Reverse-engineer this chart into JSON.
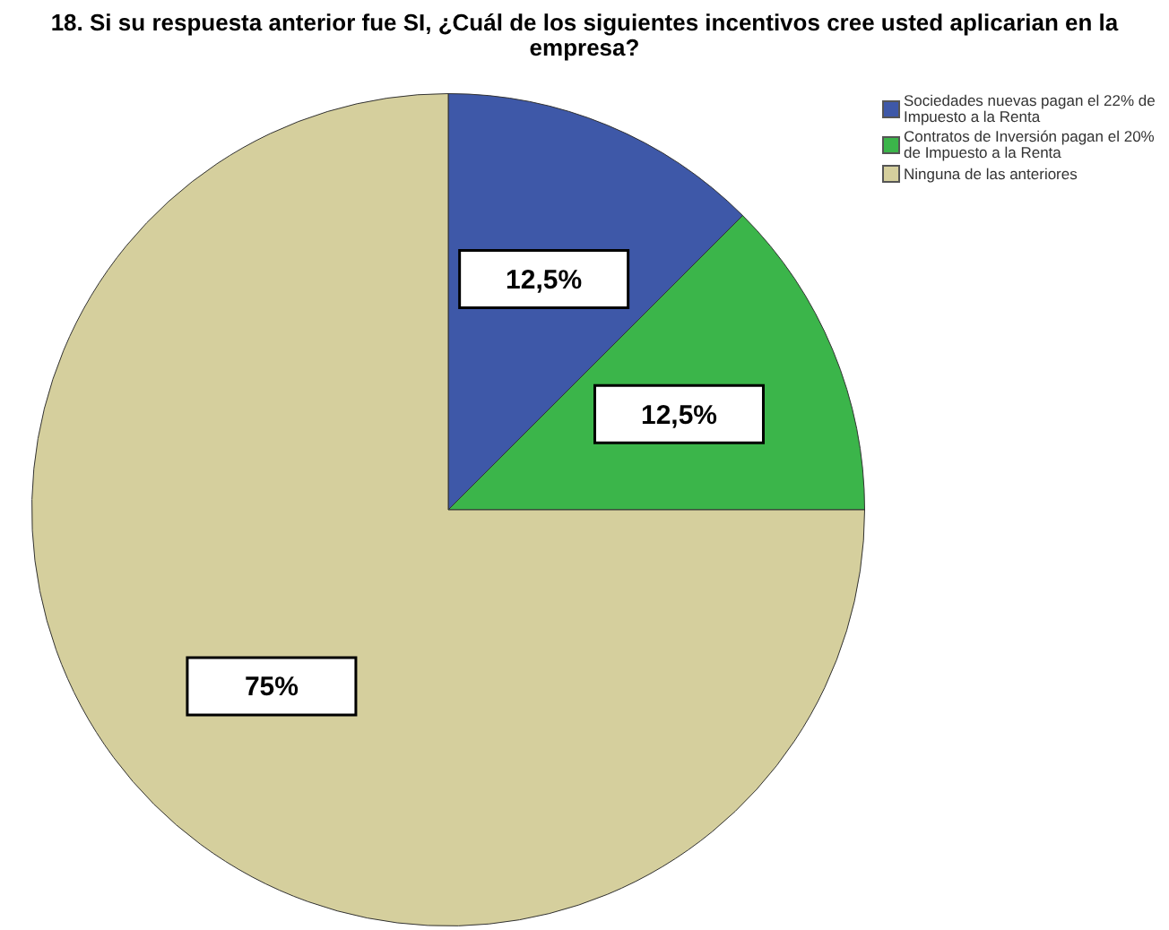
{
  "chart_data": {
    "type": "pie",
    "title": "18. Si su respuesta anterior fue SI, ¿Cuál de los siguientes incentivos cree usted aplicarian en la empresa?",
    "categories": [
      "Sociedades nuevas pagan el 22% de Impuesto a la Renta",
      "Contratos de Inversión pagan el 20% de Impuesto a la Renta",
      "Ninguna de las anteriores"
    ],
    "values": [
      12.5,
      12.5,
      75
    ],
    "colors": [
      "#3e58a8",
      "#3bb54a",
      "#d5cf9d"
    ],
    "value_labels": [
      "12,5%",
      "12,5%",
      "75%"
    ],
    "legend": "top right"
  }
}
